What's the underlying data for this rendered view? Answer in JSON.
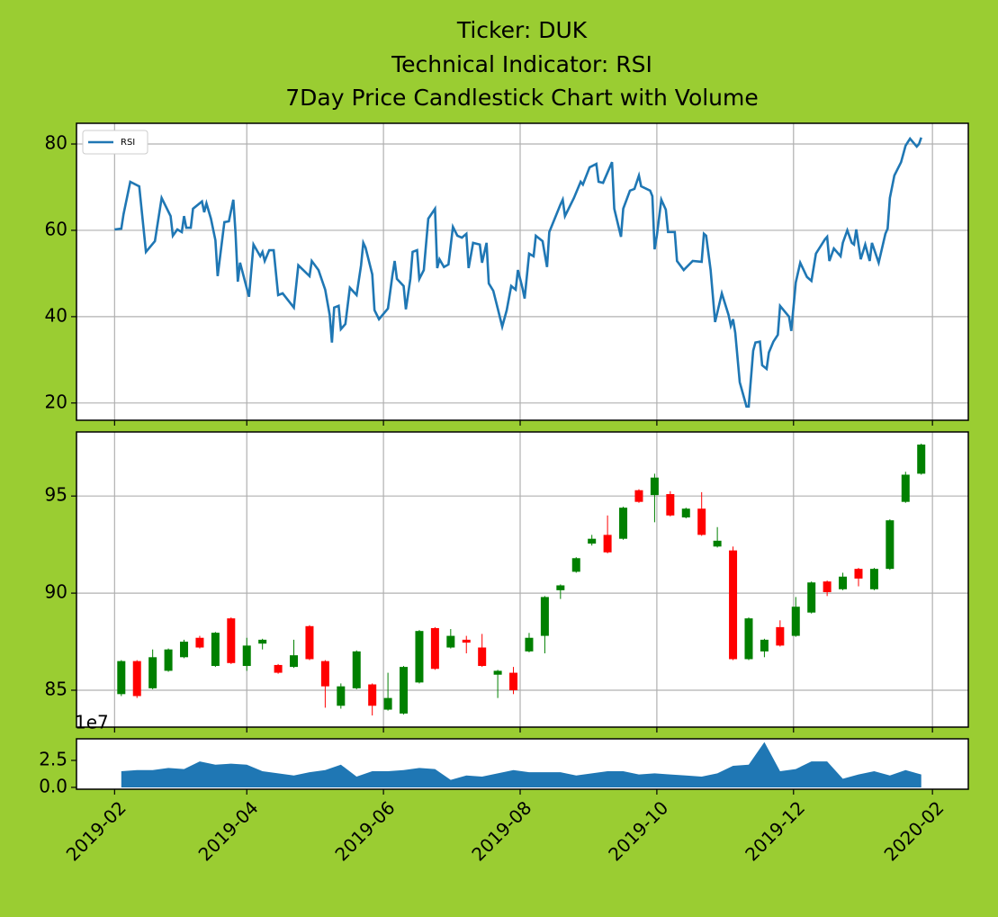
{
  "chart_data": [
    {
      "type": "line",
      "title": [
        "Ticker: DUK",
        "Technical Indicator: RSI",
        "7Day Price Candlestick Chart with Volume"
      ],
      "legend": "upper left",
      "grid": true,
      "xlim": [
        "2019-01-15",
        "2020-02-17"
      ],
      "xticks": [
        {
          "value": "2019-02-01",
          "label": "2019-02"
        },
        {
          "value": "2019-04-01",
          "label": "2019-04"
        },
        {
          "value": "2019-06-01",
          "label": "2019-06"
        },
        {
          "value": "2019-08-01",
          "label": "2019-08"
        },
        {
          "value": "2019-10-01",
          "label": "2019-10"
        },
        {
          "value": "2019-12-01",
          "label": "2019-12"
        },
        {
          "value": "2020-02-01",
          "label": "2020-02"
        }
      ],
      "ylim": [
        16,
        84.8
      ],
      "yticks": [
        20,
        40,
        60,
        80
      ],
      "x": [
        "2019-02-01",
        "2019-02-04",
        "2019-02-05",
        "2019-02-08",
        "2019-02-12",
        "2019-02-15",
        "2019-02-19",
        "2019-02-22",
        "2019-02-26",
        "2019-02-27",
        "2019-03-01",
        "2019-03-03",
        "2019-03-04",
        "2019-03-05",
        "2019-03-07",
        "2019-03-08",
        "2019-03-12",
        "2019-03-13",
        "2019-03-14",
        "2019-03-16",
        "2019-03-18",
        "2019-03-19",
        "2019-03-22",
        "2019-03-24",
        "2019-03-26",
        "2019-03-27",
        "2019-03-28",
        "2019-03-29",
        "2019-04-02",
        "2019-04-04",
        "2019-04-07",
        "2019-04-08",
        "2019-04-09",
        "2019-04-11",
        "2019-04-13",
        "2019-04-15",
        "2019-04-17",
        "2019-04-22",
        "2019-04-24",
        "2019-04-29",
        "2019-04-30",
        "2019-05-03",
        "2019-05-06",
        "2019-05-08",
        "2019-05-09",
        "2019-05-10",
        "2019-05-12",
        "2019-05-13",
        "2019-05-15",
        "2019-05-17",
        "2019-05-20",
        "2019-05-22",
        "2019-05-23",
        "2019-05-24",
        "2019-05-27",
        "2019-05-28",
        "2019-05-30",
        "2019-06-03",
        "2019-06-05",
        "2019-06-06",
        "2019-06-07",
        "2019-06-10",
        "2019-06-11",
        "2019-06-13",
        "2019-06-14",
        "2019-06-16",
        "2019-06-17",
        "2019-06-19",
        "2019-06-21",
        "2019-06-24",
        "2019-06-25",
        "2019-06-26",
        "2019-06-28",
        "2019-06-30",
        "2019-07-02",
        "2019-07-04",
        "2019-07-06",
        "2019-07-08",
        "2019-07-09",
        "2019-07-11",
        "2019-07-14",
        "2019-07-15",
        "2019-07-17",
        "2019-07-18",
        "2019-07-20",
        "2019-07-22",
        "2019-07-24",
        "2019-07-26",
        "2019-07-28",
        "2019-07-30",
        "2019-07-31",
        "2019-08-02",
        "2019-08-03",
        "2019-08-05",
        "2019-08-07",
        "2019-08-08",
        "2019-08-11",
        "2019-08-13",
        "2019-08-14",
        "2019-08-19",
        "2019-08-20",
        "2019-08-21",
        "2019-08-25",
        "2019-08-28",
        "2019-08-29",
        "2019-09-01",
        "2019-09-04",
        "2019-09-05",
        "2019-09-07",
        "2019-09-11",
        "2019-09-12",
        "2019-09-15",
        "2019-09-16",
        "2019-09-19",
        "2019-09-21",
        "2019-09-23",
        "2019-09-24",
        "2019-09-28",
        "2019-09-29",
        "2019-09-30",
        "2019-10-01",
        "2019-10-03",
        "2019-10-05",
        "2019-10-06",
        "2019-10-09",
        "2019-10-10",
        "2019-10-13",
        "2019-10-17",
        "2019-10-21",
        "2019-10-22",
        "2019-10-23",
        "2019-10-25",
        "2019-10-27",
        "2019-10-30",
        "2019-11-02",
        "2019-11-03",
        "2019-11-04",
        "2019-11-05",
        "2019-11-07",
        "2019-11-10",
        "2019-11-11",
        "2019-11-13",
        "2019-11-14",
        "2019-11-16",
        "2019-11-17",
        "2019-11-19",
        "2019-11-20",
        "2019-11-22",
        "2019-11-24",
        "2019-11-25",
        "2019-11-29",
        "2019-11-30",
        "2019-12-02",
        "2019-12-04",
        "2019-12-07",
        "2019-12-09",
        "2019-12-11",
        "2019-12-15",
        "2019-12-16",
        "2019-12-17",
        "2019-12-19",
        "2019-12-22",
        "2019-12-23",
        "2019-12-25",
        "2019-12-27",
        "2019-12-28",
        "2019-12-29",
        "2019-12-31",
        "2020-01-02",
        "2020-01-04",
        "2020-01-05",
        "2020-01-08",
        "2020-01-11",
        "2020-01-12",
        "2020-01-13",
        "2020-01-15",
        "2020-01-18",
        "2020-01-20",
        "2020-01-22",
        "2020-01-25",
        "2020-01-26",
        "2020-01-27"
      ],
      "series": [
        {
          "name": "RSI",
          "color": "#1f77b4",
          "values": [
            60.2,
            60.4,
            63.75,
            71.25,
            70.2,
            55,
            57.5,
            67.5,
            63.3,
            58.75,
            60.2,
            59.6,
            63.3,
            60.6,
            60.6,
            65,
            66.7,
            64.2,
            66.25,
            62.7,
            57.7,
            49.4,
            61.9,
            62.1,
            67.1,
            59.2,
            48.1,
            52.5,
            44.6,
            56.7,
            54,
            55,
            52.9,
            55.4,
            55.4,
            45,
            45.4,
            42.1,
            51.9,
            49.4,
            52.9,
            50.8,
            46.25,
            40.4,
            34,
            42.1,
            42.5,
            37.1,
            38.3,
            46.7,
            45,
            51.9,
            57.1,
            56,
            49.8,
            41.5,
            39.4,
            41.9,
            49.6,
            52.9,
            48.75,
            47.1,
            41.7,
            48.75,
            55,
            55.4,
            48.75,
            50.8,
            62.7,
            65,
            51.25,
            53.3,
            51.5,
            52.1,
            60.8,
            58.75,
            58.3,
            59.2,
            51.25,
            57.1,
            56.7,
            52.5,
            57.1,
            47.7,
            46,
            41.9,
            37.7,
            41.5,
            47.1,
            46.25,
            50.8,
            46.7,
            44.2,
            54.6,
            54,
            58.75,
            57.5,
            51.5,
            59.6,
            66,
            67.1,
            63.3,
            67.5,
            71.25,
            70.6,
            74.6,
            75.4,
            71.25,
            71,
            75.8,
            65,
            58.5,
            65,
            69.2,
            69.6,
            72.7,
            70.2,
            69.2,
            67.9,
            55.6,
            58.75,
            67.1,
            64.8,
            59.6,
            59.6,
            52.9,
            50.8,
            52.9,
            52.7,
            59.2,
            58.75,
            50.8,
            38.75,
            45.4,
            40.4,
            37.9,
            39.4,
            36.25,
            24.8,
            19.2,
            19.2,
            32.1,
            34,
            34.2,
            28.75,
            27.9,
            31.7,
            34.2,
            35.8,
            42.5,
            40,
            36.7,
            47.9,
            52.5,
            49.2,
            48.3,
            54.6,
            57.9,
            58.5,
            52.9,
            55.8,
            54,
            57.1,
            60,
            57.1,
            56.7,
            60.2,
            53.3,
            56.7,
            52.9,
            57.1,
            52.5,
            59.2,
            60.4,
            67.5,
            72.7,
            75.8,
            79.6,
            81.25,
            79.4,
            80,
            81.5
          ]
        }
      ]
    },
    {
      "type": "candlestick",
      "grid": true,
      "up_color": "green",
      "down_color": "red",
      "xlim": [
        "2019-01-15",
        "2020-02-17"
      ],
      "xticks": [
        {
          "value": "2019-02-01",
          "label": "2019-02"
        },
        {
          "value": "2019-04-01",
          "label": "2019-04"
        },
        {
          "value": "2019-06-01",
          "label": "2019-06"
        },
        {
          "value": "2019-08-01",
          "label": "2019-08"
        },
        {
          "value": "2019-10-01",
          "label": "2019-10"
        },
        {
          "value": "2019-12-01",
          "label": "2019-12"
        },
        {
          "value": "2020-02-01",
          "label": "2020-02"
        }
      ],
      "ylim": [
        83.1,
        98.3
      ],
      "yticks": [
        85,
        90,
        95
      ],
      "x": [
        "2019-02-04",
        "2019-02-11",
        "2019-02-18",
        "2019-02-25",
        "2019-03-04",
        "2019-03-11",
        "2019-03-18",
        "2019-03-25",
        "2019-04-01",
        "2019-04-08",
        "2019-04-15",
        "2019-04-22",
        "2019-04-29",
        "2019-05-06",
        "2019-05-13",
        "2019-05-20",
        "2019-05-27",
        "2019-06-03",
        "2019-06-10",
        "2019-06-17",
        "2019-06-24",
        "2019-07-01",
        "2019-07-08",
        "2019-07-15",
        "2019-07-22",
        "2019-07-29",
        "2019-08-05",
        "2019-08-12",
        "2019-08-19",
        "2019-08-26",
        "2019-09-02",
        "2019-09-09",
        "2019-09-16",
        "2019-09-23",
        "2019-09-30",
        "2019-10-07",
        "2019-10-14",
        "2019-10-21",
        "2019-10-28",
        "2019-11-04",
        "2019-11-11",
        "2019-11-18",
        "2019-11-25",
        "2019-12-02",
        "2019-12-09",
        "2019-12-16",
        "2019-12-23",
        "2019-12-30",
        "2020-01-06",
        "2020-01-13",
        "2020-01-20",
        "2020-01-27"
      ],
      "open": [
        84.8,
        86.5,
        85.1,
        86.0,
        86.7,
        87.7,
        86.25,
        88.7,
        86.25,
        87.4,
        86.3,
        86.2,
        88.3,
        86.5,
        84.2,
        85.1,
        85.3,
        84.0,
        83.8,
        85.4,
        88.2,
        87.2,
        87.6,
        87.2,
        85.8,
        85.9,
        87.0,
        87.8,
        90.15,
        91.1,
        92.55,
        93.0,
        92.8,
        95.3,
        95.05,
        95.1,
        93.9,
        94.35,
        92.4,
        92.2,
        86.6,
        87.0,
        88.25,
        87.8,
        89.0,
        90.6,
        90.2,
        91.25,
        90.2,
        91.25,
        94.7,
        96.15
      ],
      "high": [
        86.55,
        86.55,
        87.1,
        87.15,
        87.6,
        87.8,
        88.0,
        88.75,
        87.7,
        87.65,
        86.35,
        87.6,
        88.35,
        86.55,
        85.35,
        87.05,
        85.35,
        85.9,
        86.25,
        88.1,
        88.25,
        88.15,
        87.8,
        87.9,
        86.05,
        86.2,
        87.95,
        89.85,
        90.45,
        91.85,
        93.0,
        94.0,
        94.45,
        95.35,
        96.15,
        95.25,
        94.4,
        95.2,
        93.4,
        92.4,
        88.75,
        87.65,
        88.6,
        89.8,
        90.6,
        90.65,
        91.05,
        91.3,
        91.3,
        93.8,
        96.25,
        97.7
      ],
      "low": [
        84.7,
        84.6,
        85.05,
        85.95,
        86.65,
        87.15,
        86.2,
        86.35,
        86.0,
        87.1,
        85.85,
        86.15,
        86.55,
        84.1,
        84.05,
        85.05,
        83.7,
        83.95,
        83.75,
        85.35,
        86.05,
        87.15,
        86.9,
        86.2,
        84.6,
        84.8,
        86.95,
        86.9,
        89.7,
        91.05,
        92.45,
        92.05,
        92.75,
        94.65,
        93.65,
        93.95,
        93.85,
        92.95,
        92.35,
        86.55,
        86.55,
        86.7,
        87.25,
        87.75,
        88.95,
        89.85,
        90.15,
        90.35,
        90.15,
        91.2,
        94.65,
        96.1
      ],
      "close": [
        86.5,
        84.7,
        86.7,
        87.1,
        87.5,
        87.2,
        87.96,
        86.4,
        87.3,
        87.6,
        85.9,
        86.8,
        86.6,
        85.2,
        85.2,
        87.0,
        84.2,
        84.6,
        86.2,
        88.05,
        86.1,
        87.8,
        87.45,
        86.25,
        86.0,
        85.0,
        87.7,
        89.8,
        90.4,
        91.8,
        92.8,
        92.1,
        94.4,
        94.7,
        95.95,
        94.0,
        94.35,
        93.0,
        92.7,
        86.6,
        88.7,
        87.6,
        87.3,
        89.3,
        90.55,
        90.05,
        90.85,
        90.75,
        91.25,
        93.75,
        96.1,
        97.65
      ]
    },
    {
      "type": "area",
      "grid": false,
      "color": "#1f77b4",
      "offset_label": "1e7",
      "xlim": [
        "2019-01-15",
        "2020-02-17"
      ],
      "xticks": [
        {
          "value": "2019-02-01",
          "label": "2019-02"
        },
        {
          "value": "2019-04-01",
          "label": "2019-04"
        },
        {
          "value": "2019-06-01",
          "label": "2019-06"
        },
        {
          "value": "2019-08-01",
          "label": "2019-08"
        },
        {
          "value": "2019-10-01",
          "label": "2019-10"
        },
        {
          "value": "2019-12-01",
          "label": "2019-12"
        },
        {
          "value": "2020-02-01",
          "label": "2020-02"
        }
      ],
      "ylim": [
        -0.17,
        4.5
      ],
      "yticks": [
        {
          "value": 0,
          "label": "0.0"
        },
        2.5
      ],
      "x": [
        "2019-02-04",
        "2019-02-11",
        "2019-02-18",
        "2019-02-25",
        "2019-03-04",
        "2019-03-11",
        "2019-03-18",
        "2019-03-25",
        "2019-04-01",
        "2019-04-08",
        "2019-04-15",
        "2019-04-22",
        "2019-04-29",
        "2019-05-06",
        "2019-05-13",
        "2019-05-20",
        "2019-05-27",
        "2019-06-03",
        "2019-06-10",
        "2019-06-17",
        "2019-06-24",
        "2019-07-01",
        "2019-07-08",
        "2019-07-15",
        "2019-07-22",
        "2019-07-29",
        "2019-08-05",
        "2019-08-12",
        "2019-08-19",
        "2019-08-26",
        "2019-09-02",
        "2019-09-09",
        "2019-09-16",
        "2019-09-23",
        "2019-09-30",
        "2019-10-07",
        "2019-10-14",
        "2019-10-21",
        "2019-10-28",
        "2019-11-04",
        "2019-11-11",
        "2019-11-18",
        "2019-11-25",
        "2019-12-02",
        "2019-12-09",
        "2019-12-16",
        "2019-12-23",
        "2019-12-30",
        "2020-01-06",
        "2020-01-13",
        "2020-01-20",
        "2020-01-27"
      ],
      "values": [
        1.5,
        1.6,
        1.6,
        1.8,
        1.7,
        2.4,
        2.1,
        2.2,
        2.1,
        1.5,
        1.3,
        1.1,
        1.4,
        1.6,
        2.1,
        1.0,
        1.5,
        1.5,
        1.6,
        1.8,
        1.7,
        0.7,
        1.1,
        1.0,
        1.3,
        1.6,
        1.4,
        1.4,
        1.4,
        1.1,
        1.3,
        1.5,
        1.5,
        1.2,
        1.3,
        1.2,
        1.1,
        1.0,
        1.3,
        2.0,
        2.1,
        4.2,
        1.5,
        1.7,
        2.4,
        2.4,
        0.8,
        1.2,
        1.5,
        1.1,
        1.6,
        1.2
      ]
    }
  ]
}
